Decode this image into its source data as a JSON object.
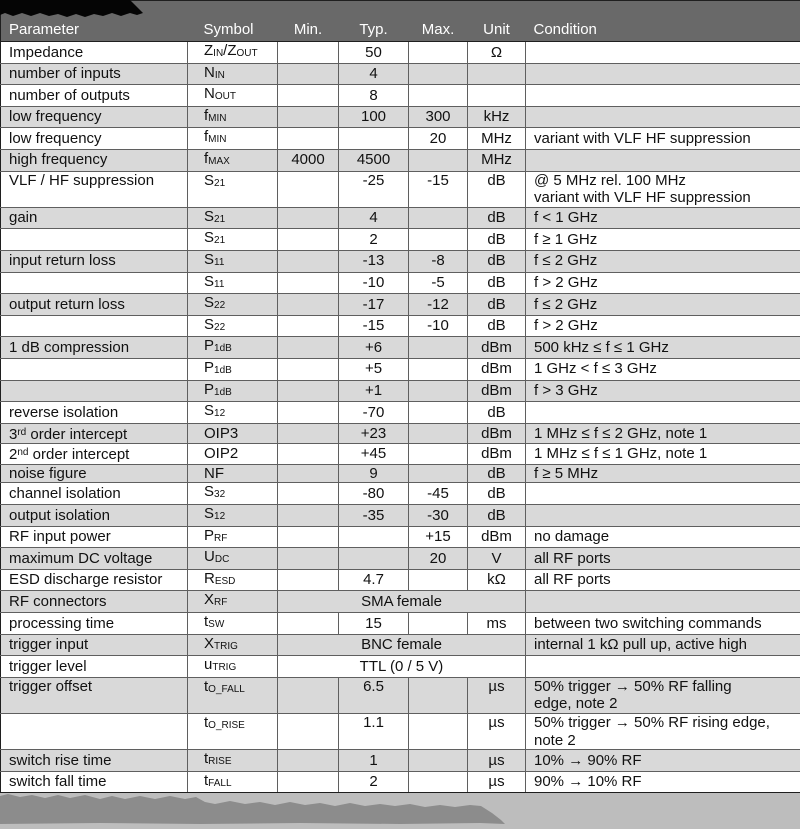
{
  "page": {
    "background": "#bdbdbd",
    "header_bg": "#696969",
    "row_alt_bg": "#d9d9d9",
    "row_bg": "#ffffff",
    "border_color": "#5f5f5f",
    "redaction_top_color": "#050505",
    "redaction_bottom_color": "#8c8c8c"
  },
  "table": {
    "columns": [
      "Parameter",
      "Symbol",
      "Min.",
      "Typ.",
      "Max.",
      "Unit",
      "Condition"
    ],
    "rows": [
      {
        "param": "Impedance",
        "symbol": "Z~IN~/Z~OUT~",
        "typ": "50",
        "unit": "Ω"
      },
      {
        "param": "number of inputs",
        "symbol": "N~IN~",
        "typ": "4"
      },
      {
        "param": "number of outputs",
        "symbol": "N~OUT~",
        "typ": "8"
      },
      {
        "param": "low frequency",
        "symbol": "f~MIN~",
        "typ": "100",
        "max": "300",
        "unit": "kHz"
      },
      {
        "param": "low frequency",
        "symbol": "f~MIN~",
        "max": "20",
        "unit": "MHz",
        "cond": "variant with VLF HF suppression"
      },
      {
        "param": "high frequency",
        "symbol": "f~MAX~",
        "min": "4000",
        "typ": "4500",
        "unit": "MHz"
      },
      {
        "param": "VLF / HF suppression",
        "symbol": "S~21~",
        "typ": "-25",
        "max": "-15",
        "unit": "dB",
        "cond": "@ 5 MHz rel. 100 MHz\nvariant with VLF HF suppression",
        "tall": true
      },
      {
        "param": "gain",
        "symbol": "S~21~",
        "typ": "4",
        "unit": "dB",
        "cond": "f < 1 GHz"
      },
      {
        "param": "",
        "symbol": "S~21~",
        "typ": "2",
        "unit": "dB",
        "cond": "f ≥ 1 GHz"
      },
      {
        "param": "input return loss",
        "symbol": "S~11~",
        "typ": "-13",
        "max": "-8",
        "unit": "dB",
        "cond": "f ≤ 2 GHz"
      },
      {
        "param": "",
        "symbol": "S~11~",
        "typ": "-10",
        "max": "-5",
        "unit": "dB",
        "cond": "f > 2 GHz"
      },
      {
        "param": "output return loss",
        "symbol": "S~22~",
        "typ": "-17",
        "max": "-12",
        "unit": "dB",
        "cond": "f ≤ 2 GHz"
      },
      {
        "param": "",
        "symbol": "S~22~",
        "typ": "-15",
        "max": "-10",
        "unit": "dB",
        "cond": "f > 2 GHz"
      },
      {
        "param": "1 dB compression",
        "symbol": "P~1dB~",
        "typ": "+6",
        "unit": "dBm",
        "cond": "500 kHz ≤ f ≤ 1 GHz"
      },
      {
        "param": "",
        "symbol": "P~1dB~",
        "typ": "+5",
        "unit": "dBm",
        "cond": "1 GHz < f ≤ 3 GHz"
      },
      {
        "param": "",
        "symbol": "P~1dB~",
        "typ": "+1",
        "unit": "dBm",
        "cond": "f > 3 GHz"
      },
      {
        "param": "reverse isolation",
        "symbol": "S~12~",
        "typ": "-70",
        "unit": "dB"
      },
      {
        "param": "3^rd^ order intercept",
        "symbol": "OIP3",
        "typ": "+23",
        "unit": "dBm",
        "cond": "1 MHz ≤ f ≤ 2 GHz, note 1"
      },
      {
        "param": "2^nd^ order intercept",
        "symbol": "OIP2",
        "typ": "+45",
        "unit": "dBm",
        "cond": "1 MHz ≤ f ≤ 1 GHz, note 1"
      },
      {
        "param": "noise figure",
        "symbol": "NF",
        "typ": "9",
        "unit": "dB",
        "cond": "f ≥ 5 MHz"
      },
      {
        "param": "channel isolation",
        "symbol": "S~32~",
        "typ": "-80",
        "max": "-45",
        "unit": "dB"
      },
      {
        "param": "output isolation",
        "symbol": "S~12~",
        "typ": "-35",
        "max": "-30",
        "unit": "dB"
      },
      {
        "param": "RF input power",
        "symbol": "P~RF~",
        "max": "+15",
        "unit": "dBm",
        "cond": "no damage"
      },
      {
        "param": "maximum DC voltage",
        "symbol": "U~DC~",
        "max": "20",
        "unit": "V",
        "cond": "all RF ports"
      },
      {
        "param": "ESD discharge resistor",
        "symbol": "R~ESD~",
        "typ": "4.7",
        "unit": "kΩ",
        "cond": "all RF ports"
      },
      {
        "param": "RF connectors",
        "symbol": "X~RF~",
        "span": "SMA female"
      },
      {
        "param": "processing time",
        "symbol": "t~SW~",
        "typ": "15",
        "unit": "ms",
        "cond": "between two switching commands"
      },
      {
        "param": "trigger input",
        "symbol": "X~TRIG~",
        "span": "BNC female",
        "cond": "internal 1 kΩ pull up, active high"
      },
      {
        "param": "trigger level",
        "symbol": "u~TRIG~",
        "span": "TTL (0 / 5 V)"
      },
      {
        "param": "trigger offset",
        "symbol": "t~O_FALL~",
        "typ": "6.5",
        "unit": "µs",
        "cond": "50% trigger → 50% RF falling\nedge, note 2",
        "tall": true
      },
      {
        "param": "",
        "symbol": "t~O_RISE~",
        "typ": "1.1",
        "unit": "µs",
        "cond": "50% trigger → 50% RF rising edge,\nnote 2",
        "tall": true
      },
      {
        "param": "switch rise time",
        "symbol": "t~RISE~",
        "typ": "1",
        "unit": "µs",
        "cond": "10% → 90% RF"
      },
      {
        "param": "switch fall time",
        "symbol": "t~FALL~",
        "typ": "2",
        "unit": "µs",
        "cond": "90% → 10% RF"
      }
    ]
  }
}
